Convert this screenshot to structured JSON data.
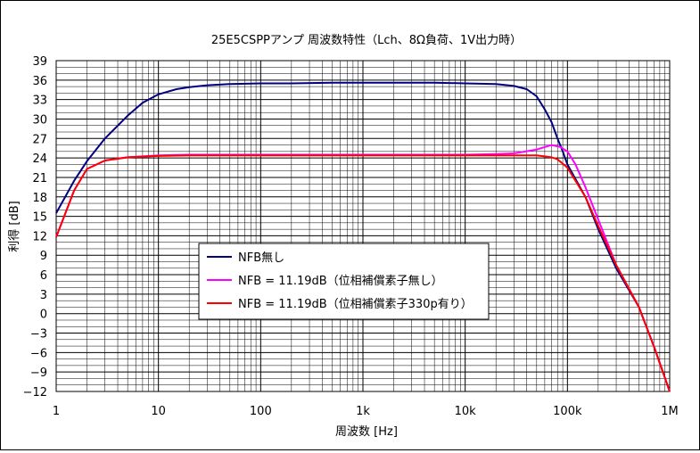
{
  "chart_data": {
    "type": "line",
    "title": "25E5CSPPアンプ 周波数特性（Lch、8Ω負荷、1V出力時）",
    "xlabel": "周波数 [Hz]",
    "ylabel": "利得 [dB]",
    "xscale": "log",
    "xlim": [
      1,
      1000000
    ],
    "ylim": [
      -12,
      39
    ],
    "xticks": [
      {
        "value": 1,
        "label": "1"
      },
      {
        "value": 10,
        "label": "10"
      },
      {
        "value": 100,
        "label": "100"
      },
      {
        "value": 1000,
        "label": "1k"
      },
      {
        "value": 10000,
        "label": "10k"
      },
      {
        "value": 100000,
        "label": "100k"
      },
      {
        "value": 1000000,
        "label": "1M"
      }
    ],
    "yticks": [
      39,
      36,
      33,
      30,
      27,
      24,
      21,
      18,
      15,
      12,
      9,
      6,
      3,
      0,
      -3,
      -6,
      -9,
      -12
    ],
    "grid": true,
    "legend_position": "center-left",
    "series": [
      {
        "name": "NFB無し",
        "color": "#000080",
        "points": [
          [
            1,
            15.5
          ],
          [
            1.5,
            20.5
          ],
          [
            2,
            23.5
          ],
          [
            3,
            27
          ],
          [
            5,
            30.5
          ],
          [
            7,
            32.5
          ],
          [
            10,
            33.8
          ],
          [
            15,
            34.6
          ],
          [
            20,
            34.9
          ],
          [
            30,
            35.2
          ],
          [
            50,
            35.4
          ],
          [
            100,
            35.5
          ],
          [
            200,
            35.5
          ],
          [
            500,
            35.6
          ],
          [
            1000,
            35.6
          ],
          [
            2000,
            35.6
          ],
          [
            5000,
            35.6
          ],
          [
            10000,
            35.5
          ],
          [
            20000,
            35.4
          ],
          [
            30000,
            35.1
          ],
          [
            40000,
            34.6
          ],
          [
            50000,
            33.5
          ],
          [
            60000,
            31.5
          ],
          [
            70000,
            29.5
          ],
          [
            80000,
            27
          ],
          [
            90000,
            25
          ],
          [
            100000,
            23
          ],
          [
            150000,
            18
          ],
          [
            200000,
            13
          ],
          [
            300000,
            7
          ],
          [
            500000,
            1
          ],
          [
            700000,
            -5
          ],
          [
            1000000,
            -12
          ]
        ]
      },
      {
        "name": "NFB = 11.19dB（位相補償素子無し）",
        "color": "#ff00ff",
        "points": [
          [
            1,
            11.8
          ],
          [
            1.5,
            19
          ],
          [
            2,
            22.3
          ],
          [
            3,
            23.6
          ],
          [
            5,
            24.1
          ],
          [
            10,
            24.4
          ],
          [
            20,
            24.5
          ],
          [
            100,
            24.5
          ],
          [
            1000,
            24.5
          ],
          [
            10000,
            24.5
          ],
          [
            20000,
            24.6
          ],
          [
            30000,
            24.7
          ],
          [
            50000,
            25.3
          ],
          [
            70000,
            26
          ],
          [
            85000,
            25.7
          ],
          [
            100000,
            25
          ],
          [
            120000,
            23
          ],
          [
            150000,
            19.5
          ],
          [
            200000,
            14.5
          ],
          [
            300000,
            7.5
          ],
          [
            500000,
            1
          ],
          [
            700000,
            -5
          ],
          [
            1000000,
            -12
          ]
        ]
      },
      {
        "name": "NFB = 11.19dB（位相補償素子330p有り）",
        "color": "#ff0000",
        "points": [
          [
            1,
            11.8
          ],
          [
            1.5,
            19
          ],
          [
            2,
            22.3
          ],
          [
            3,
            23.6
          ],
          [
            5,
            24.1
          ],
          [
            10,
            24.3
          ],
          [
            20,
            24.4
          ],
          [
            100,
            24.4
          ],
          [
            1000,
            24.4
          ],
          [
            10000,
            24.4
          ],
          [
            30000,
            24.4
          ],
          [
            50000,
            24.4
          ],
          [
            70000,
            24.1
          ],
          [
            80000,
            23.8
          ],
          [
            100000,
            22.5
          ],
          [
            150000,
            18
          ],
          [
            200000,
            13.5
          ],
          [
            300000,
            7.5
          ],
          [
            500000,
            1
          ],
          [
            700000,
            -5
          ],
          [
            1000000,
            -12
          ]
        ]
      }
    ]
  }
}
